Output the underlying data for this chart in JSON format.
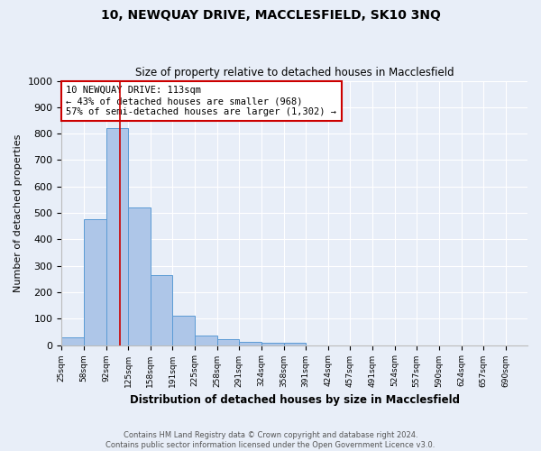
{
  "title_line1": "10, NEWQUAY DRIVE, MACCLESFIELD, SK10 3NQ",
  "title_line2": "Size of property relative to detached houses in Macclesfield",
  "xlabel": "Distribution of detached houses by size in Macclesfield",
  "ylabel": "Number of detached properties",
  "bin_edges": [
    25,
    58,
    92,
    125,
    158,
    191,
    225,
    258,
    291,
    324,
    358,
    391,
    424,
    457,
    491,
    524,
    557,
    590,
    624,
    657,
    690
  ],
  "bar_heights": [
    30,
    478,
    820,
    520,
    265,
    110,
    37,
    22,
    12,
    8,
    8,
    0,
    0,
    0,
    0,
    0,
    0,
    0,
    0,
    0
  ],
  "bar_color": "#aec6e8",
  "bar_edge_color": "#5b9bd5",
  "property_size": 113,
  "red_line_color": "#cc0000",
  "ylim": [
    0,
    1000
  ],
  "yticks": [
    0,
    100,
    200,
    300,
    400,
    500,
    600,
    700,
    800,
    900,
    1000
  ],
  "annotation_text": "10 NEWQUAY DRIVE: 113sqm\n← 43% of detached houses are smaller (968)\n57% of semi-detached houses are larger (1,302) →",
  "annotation_box_color": "#ffffff",
  "annotation_box_edge_color": "#cc0000",
  "footer_line1": "Contains HM Land Registry data © Crown copyright and database right 2024.",
  "footer_line2": "Contains public sector information licensed under the Open Government Licence v3.0.",
  "background_color": "#e8eef8",
  "grid_color": "#ffffff"
}
